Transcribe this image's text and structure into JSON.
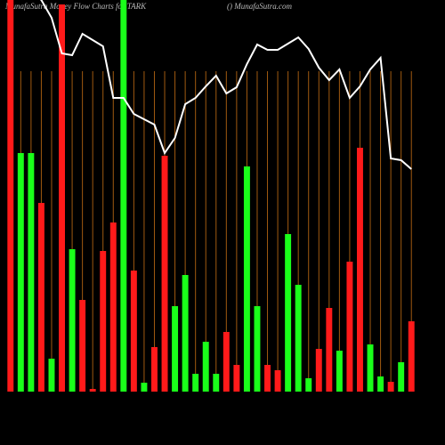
{
  "chart_data": {
    "type": "bar",
    "title": "MunafaSutra Money Flow Charts for TARK",
    "subtitle": "() MunafaSutra.com",
    "categories": [
      null,
      null,
      null,
      null,
      null,
      null,
      null,
      null,
      null,
      null,
      null,
      null,
      null,
      null,
      null,
      null,
      null,
      null,
      null,
      null,
      null,
      null,
      null,
      null,
      null,
      null,
      null,
      null,
      null,
      null,
      null,
      null,
      null,
      null,
      null,
      null,
      null,
      null,
      null,
      null
    ],
    "values": [
      440,
      268,
      268,
      212,
      37,
      435,
      160,
      103,
      3,
      158,
      190,
      440,
      136,
      10,
      50,
      265,
      96,
      131,
      20,
      56,
      20,
      67,
      30,
      253,
      96,
      30,
      24,
      177,
      120,
      15,
      48,
      94,
      46,
      146,
      274,
      53,
      17,
      11,
      33,
      79
    ],
    "colors": [
      "#ff1a1a",
      "#1aff1a",
      "#1aff1a",
      "#ff1a1a",
      "#1aff1a",
      "#ff1a1a",
      "#1aff1a",
      "#ff1a1a",
      "#ff1a1a",
      "#ff1a1a",
      "#ff1a1a",
      "#1aff1a",
      "#ff1a1a",
      "#1aff1a",
      "#ff1a1a",
      "#ff1a1a",
      "#1aff1a",
      "#1aff1a",
      "#1aff1a",
      "#1aff1a",
      "#1aff1a",
      "#ff1a1a",
      "#ff1a1a",
      "#1aff1a",
      "#1aff1a",
      "#ff1a1a",
      "#ff1a1a",
      "#1aff1a",
      "#1aff1a",
      "#1aff1a",
      "#ff1a1a",
      "#ff1a1a",
      "#1aff1a",
      "#ff1a1a",
      "#ff1a1a",
      "#1aff1a",
      "#1aff1a",
      "#ff1a1a",
      "#1aff1a",
      "#ff1a1a"
    ],
    "line_values": [
      480,
      470,
      450,
      440,
      420,
      380,
      378,
      402,
      395,
      388,
      330,
      330,
      312,
      306,
      300,
      268,
      285,
      323,
      330,
      343,
      355,
      335,
      342,
      368,
      390,
      384,
      384,
      391,
      398,
      385,
      364,
      350,
      362,
      330,
      343,
      362,
      375,
      262,
      260,
      250
    ],
    "line_color": "#ffffff",
    "grid_color": "#a05a10",
    "ylim": [
      0,
      440
    ],
    "grid": true
  }
}
